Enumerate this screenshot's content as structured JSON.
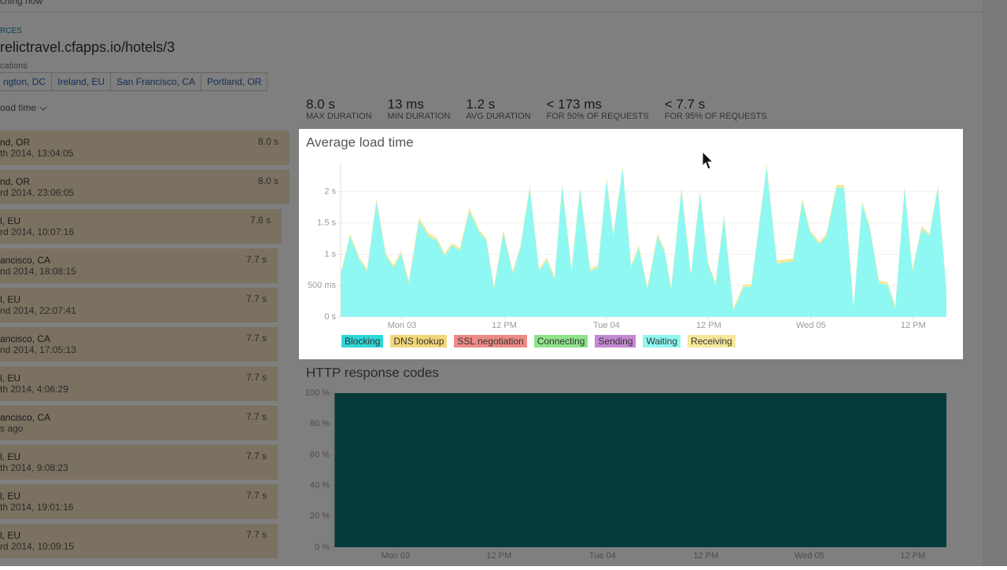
{
  "header": {
    "status": "ching now",
    "section": "RCES",
    "url": "relictravel.cfapps.io/hotels/3",
    "locations_label": "cations",
    "locations": [
      "ngton, DC",
      "Ireland, EU",
      "San Francisco, CA",
      "Portland, OR"
    ],
    "sort": "oad time"
  },
  "requests": [
    {
      "location": "nd, OR",
      "time": "th 2014, 13:04:05",
      "duration": "8.0 s"
    },
    {
      "location": "nd, OR",
      "time": "rd 2014, 23:06:05",
      "duration": "8.0 s"
    },
    {
      "location": "l, EU",
      "time": "rd 2014, 10:07:16",
      "duration": "7.8 s"
    },
    {
      "location": "ancisco, CA",
      "time": "nd 2014, 18:08:15",
      "duration": "7.7 s"
    },
    {
      "location": "l, EU",
      "time": "nd 2014, 22:07:41",
      "duration": "7.7 s"
    },
    {
      "location": "ancisco, CA",
      "time": "nd 2014, 17:05:13",
      "duration": "7.7 s"
    },
    {
      "location": "l, EU",
      "time": "th 2014, 4:06:29",
      "duration": "7.7 s"
    },
    {
      "location": "ancisco, CA",
      "time": "s ago",
      "duration": "7.7 s"
    },
    {
      "location": "l, EU",
      "time": "th 2014, 9:08:23",
      "duration": "7.7 s"
    },
    {
      "location": "l, EU",
      "time": "th 2014, 19:01:16",
      "duration": "7.7 s"
    },
    {
      "location": "l, EU",
      "time": "rd 2014, 10:09:15",
      "duration": "7.7 s"
    }
  ],
  "stats": [
    {
      "value": "8.0 s",
      "label": "MAX DURATION"
    },
    {
      "value": "13 ms",
      "label": "MIN DURATION"
    },
    {
      "value": "1.2 s",
      "label": "AVG DURATION"
    },
    {
      "value": "< 173 ms",
      "label": "FOR 50% OF REQUESTS"
    },
    {
      "value": "< 7.7 s",
      "label": "FOR 95% OF REQUESTS"
    }
  ],
  "chart_data": [
    {
      "type": "area",
      "title": "Average load time",
      "grid": true,
      "x": [
        -7.2,
        -6.1,
        -5.0,
        -4.1,
        -3.0,
        -1.9,
        -1.0,
        -0.1,
        0.8,
        2.0,
        3.1,
        4.1,
        5.0,
        5.9,
        6.8,
        7.9,
        9.1,
        9.9,
        10.8,
        11.9,
        13.0,
        13.9,
        15.0,
        16.1,
        17.0,
        17.9,
        18.8,
        19.9,
        20.9,
        22.1,
        23.0,
        24.0,
        24.8,
        25.9,
        26.9,
        27.8,
        28.8,
        30.0,
        30.8,
        31.6,
        32.8,
        33.9,
        35.0,
        35.9,
        36.8,
        37.8,
        38.9,
        40.1,
        41.0,
        42.8,
        44.0,
        45.9,
        47.0,
        47.9,
        49.0,
        49.8,
        51.0,
        51.9,
        53.0,
        54.0,
        54.9,
        56.0,
        57.0,
        57.9,
        59.0,
        59.9,
        61.0,
        61.9,
        62.9,
        63.9
      ],
      "series": [
        {
          "name": "Blocking",
          "color": "#2fd6d6"
        },
        {
          "name": "DNS lookup",
          "color": "#f2d77a"
        },
        {
          "name": "SSL negotiation",
          "color": "#ee8a86"
        },
        {
          "name": "Connecting",
          "color": "#8fe38a"
        },
        {
          "name": "Sending",
          "color": "#c488d2"
        },
        {
          "name": "Waiting",
          "color": "#8ff8f2",
          "values": [
            0.66,
            1.29,
            0.91,
            0.73,
            1.85,
            0.98,
            0.79,
            1.01,
            0.54,
            1.54,
            1.29,
            1.22,
            0.98,
            1.14,
            1.06,
            1.69,
            1.35,
            1.22,
            0.44,
            1.35,
            0.69,
            1.1,
            2.06,
            0.73,
            0.91,
            0.6,
            2.1,
            0.73,
            2.04,
            0.73,
            0.79,
            2.19,
            1.29,
            2.38,
            0.79,
            1.1,
            0.44,
            1.29,
            1.04,
            0.44,
            2.04,
            0.66,
            1.98,
            0.85,
            0.51,
            1.6,
            0.1,
            0.48,
            0.48,
            2.4,
            0.85,
            0.89,
            1.85,
            1.35,
            1.16,
            1.29,
            2.06,
            2.06,
            0.14,
            1.81,
            1.41,
            0.54,
            0.51,
            0.14,
            2.06,
            0.73,
            1.41,
            1.29,
            2.06,
            0.41
          ]
        },
        {
          "name": "Receiving",
          "color": "#f6e89a",
          "values": [
            0.04,
            0.04,
            0.04,
            0.04,
            0.04,
            0.04,
            0.04,
            0.04,
            0.04,
            0.05,
            0.05,
            0.04,
            0.04,
            0.04,
            0.04,
            0.05,
            0.04,
            0.04,
            0.04,
            0.04,
            0.04,
            0.04,
            0.04,
            0.04,
            0.04,
            0.04,
            0.04,
            0.04,
            0.04,
            0.04,
            0.04,
            0.04,
            0.04,
            0.04,
            0.04,
            0.04,
            0.04,
            0.04,
            0.04,
            0.04,
            0.04,
            0.04,
            0.04,
            0.04,
            0.04,
            0.04,
            0.04,
            0.04,
            0.04,
            0.04,
            0.05,
            0.05,
            0.04,
            0.04,
            0.04,
            0.04,
            0.05,
            0.05,
            0.04,
            0.04,
            0.04,
            0.04,
            0.04,
            0.04,
            0.04,
            0.04,
            0.04,
            0.04,
            0.04,
            0.04
          ]
        }
      ],
      "xlim": [
        -7.2,
        63.9
      ],
      "xticks": [
        {
          "value": 0,
          "label": "Mon 03"
        },
        {
          "value": 12,
          "label": "12 PM"
        },
        {
          "value": 24,
          "label": "Tue 04"
        },
        {
          "value": 36,
          "label": "12 PM"
        },
        {
          "value": 48,
          "label": "Wed 05"
        },
        {
          "value": 60,
          "label": "12 PM"
        }
      ],
      "ylim": [
        0,
        2.45
      ],
      "yticks": [
        {
          "value": 0,
          "label": "0 s"
        },
        {
          "value": 0.5,
          "label": "500 ms"
        },
        {
          "value": 1,
          "label": "1 s"
        },
        {
          "value": 1.5,
          "label": "1.5 s"
        },
        {
          "value": 2,
          "label": "2 s"
        }
      ]
    },
    {
      "type": "area",
      "title": "HTTP response codes",
      "grid": false,
      "x": [
        -7.1,
        63.9
      ],
      "series": [
        {
          "color": "#0e7474",
          "values": [
            100,
            100
          ]
        }
      ],
      "xlim": [
        -7.1,
        63.9
      ],
      "xticks": [
        {
          "value": 0,
          "label": "Mon 03"
        },
        {
          "value": 12,
          "label": "12 PM"
        },
        {
          "value": 24,
          "label": "Tue 04"
        },
        {
          "value": 36,
          "label": "12 PM"
        },
        {
          "value": 48,
          "label": "Wed 05"
        },
        {
          "value": 60,
          "label": "12 PM"
        }
      ],
      "ylim": [
        0,
        100
      ],
      "yticks": [
        {
          "value": 0,
          "label": "0 %"
        },
        {
          "value": 20,
          "label": "20 %"
        },
        {
          "value": 40,
          "label": "40 %"
        },
        {
          "value": 60,
          "label": "60 %"
        },
        {
          "value": 80,
          "label": "80 %"
        },
        {
          "value": 100,
          "label": "100 %"
        }
      ]
    }
  ]
}
